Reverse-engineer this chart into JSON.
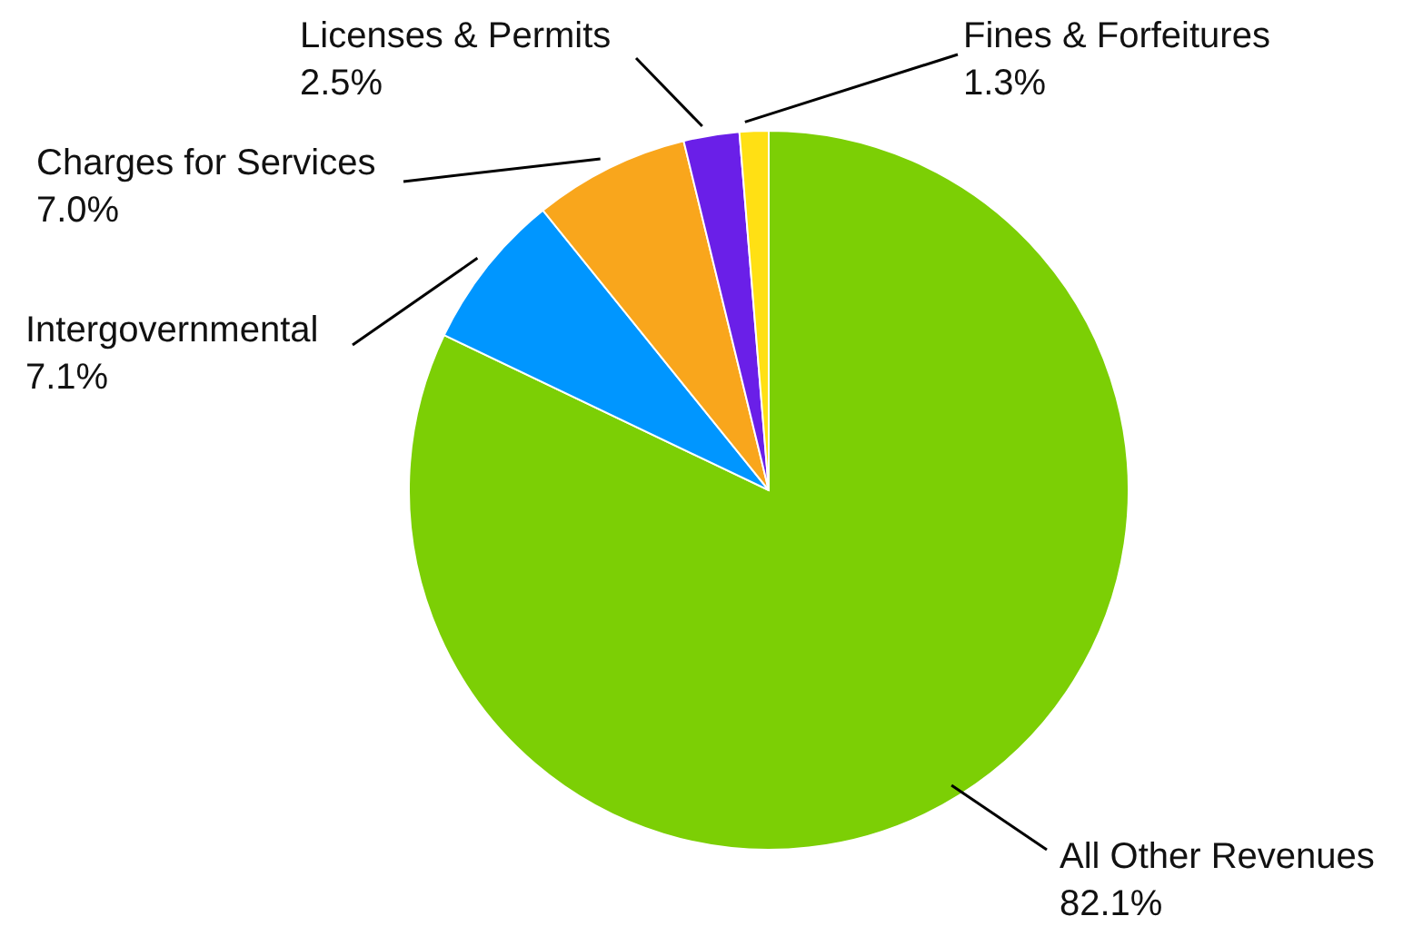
{
  "chart_data": {
    "type": "pie",
    "categories": [
      "All Other Revenues",
      "Intergovernmental",
      "Charges for Services",
      "Licenses & Permits",
      "Fines & Forfeitures"
    ],
    "values": [
      82.1,
      7.1,
      7.0,
      2.5,
      1.3
    ],
    "value_labels": [
      "82.1%",
      "7.1%",
      "7.0%",
      "2.5%",
      "1.3%"
    ],
    "colors": [
      "#7ccf05",
      "#0096ff",
      "#f9a61c",
      "#6a1fe8",
      "#ffe014"
    ]
  }
}
